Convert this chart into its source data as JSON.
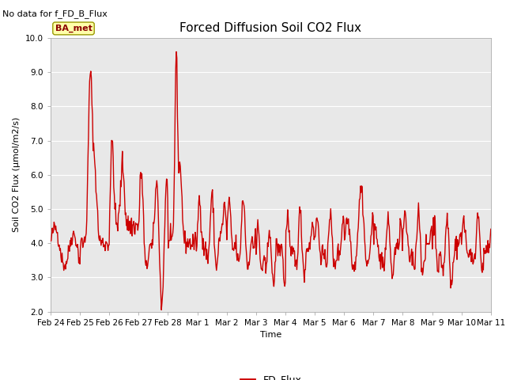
{
  "title": "Forced Diffusion Soil CO2 Flux",
  "no_data_text": "No data for f_FD_B_Flux",
  "xlabel": "Time",
  "ylabel": "Soil CO2 Flux (μmol/m2/s)",
  "ylim": [
    2.0,
    10.0
  ],
  "yticks": [
    2.0,
    3.0,
    4.0,
    5.0,
    6.0,
    7.0,
    8.0,
    9.0,
    10.0
  ],
  "line_color": "#cc0000",
  "line_width": 1.0,
  "legend_label": "FD_Flux",
  "ba_met_label": "BA_met",
  "background_color": "#e8e8e8",
  "title_fontsize": 11,
  "axis_label_fontsize": 8,
  "tick_fontsize": 7.5,
  "no_data_fontsize": 8,
  "ba_met_fontsize": 8,
  "legend_fontsize": 9,
  "x_tick_labels": [
    "Feb 24",
    "Feb 25",
    "Feb 26",
    "Feb 27",
    "Feb 28",
    "Mar 1",
    "Mar 2",
    "Mar 3",
    "Mar 4",
    "Mar 5",
    "Mar 6",
    "Mar 7",
    "Mar 8",
    "Mar 9",
    "Mar 10",
    "Mar 11"
  ],
  "x_tick_positions": [
    0,
    1,
    2,
    3,
    4,
    5,
    6,
    7,
    8,
    9,
    10,
    11,
    12,
    13,
    14,
    15
  ]
}
